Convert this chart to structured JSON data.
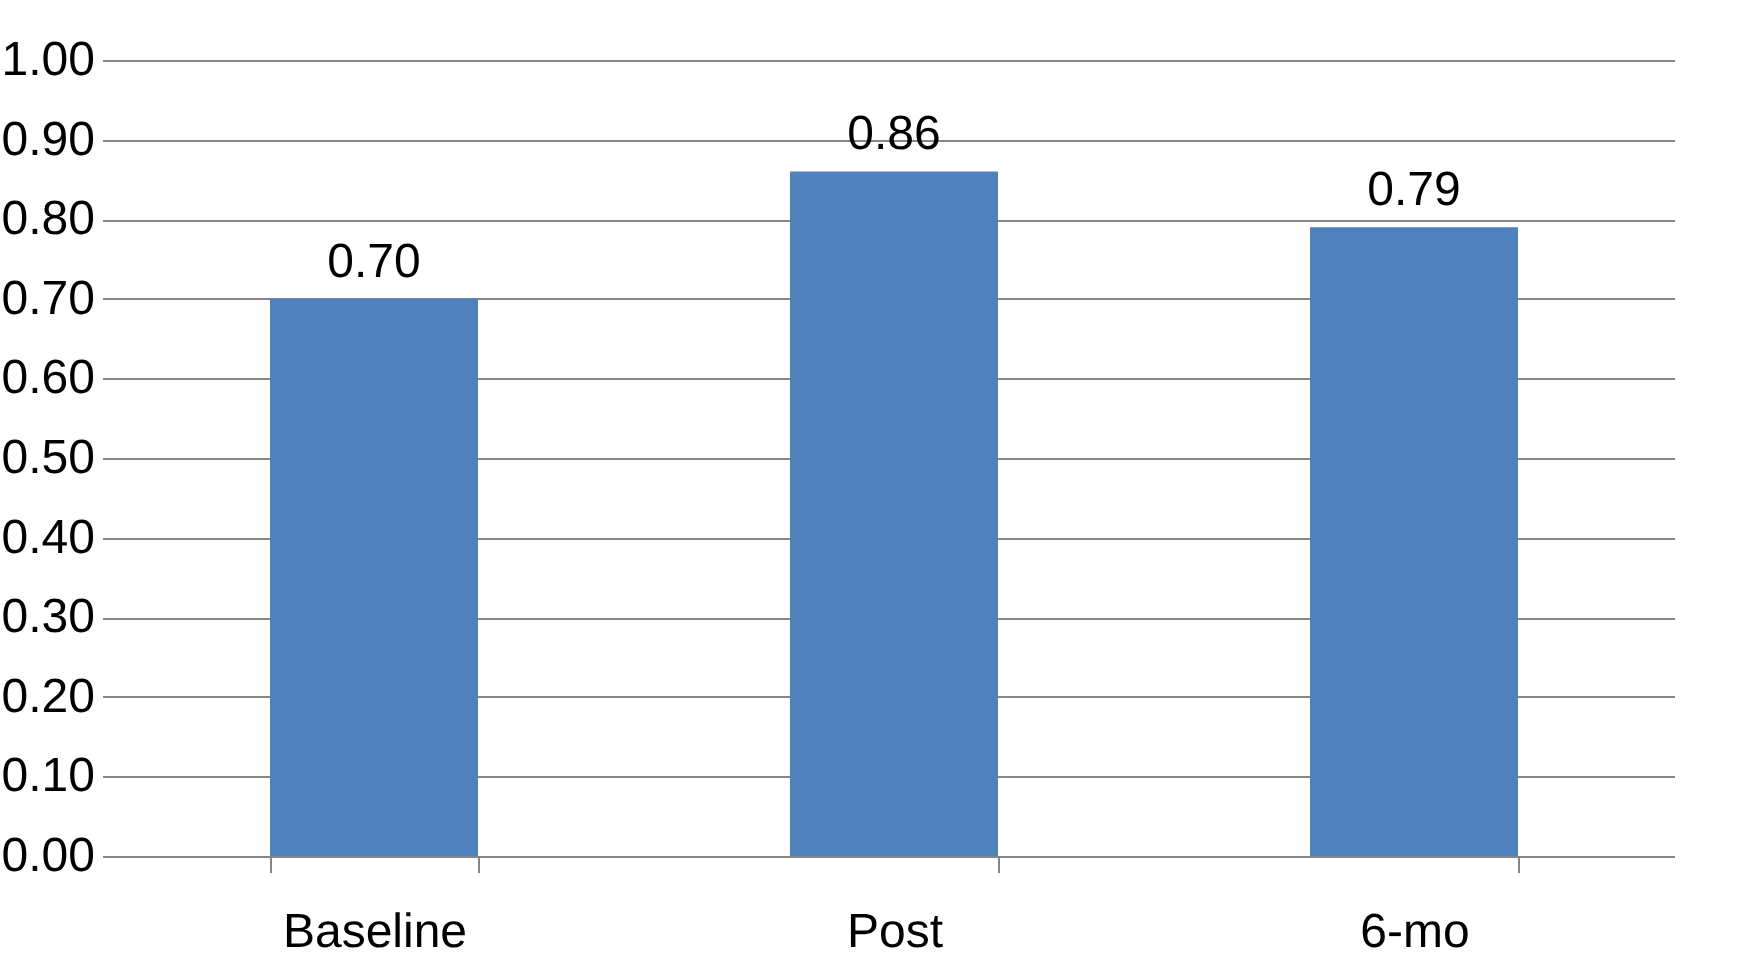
{
  "chart_data": {
    "type": "bar",
    "categories": [
      "Baseline",
      "Post",
      "6-mo"
    ],
    "values": [
      0.7,
      0.86,
      0.79
    ],
    "value_labels": [
      "0.70",
      "0.86",
      "0.79"
    ],
    "color": "#4f81bd",
    "ylim": [
      0,
      1
    ],
    "yticks": [
      {
        "value": 0,
        "label": "0.00"
      },
      {
        "value": 0.1,
        "label": "0.10"
      },
      {
        "value": 0.2,
        "label": "0.20"
      },
      {
        "value": 0.3,
        "label": "0.30"
      },
      {
        "value": 0.4,
        "label": "0.40"
      },
      {
        "value": 0.5,
        "label": "0.50"
      },
      {
        "value": 0.6,
        "label": "0.60"
      },
      {
        "value": 0.7,
        "label": "0.70"
      },
      {
        "value": 0.8,
        "label": "0.80"
      },
      {
        "value": 0.9,
        "label": "0.90"
      },
      {
        "value": 1,
        "label": "1.00"
      }
    ],
    "grid": "y"
  }
}
